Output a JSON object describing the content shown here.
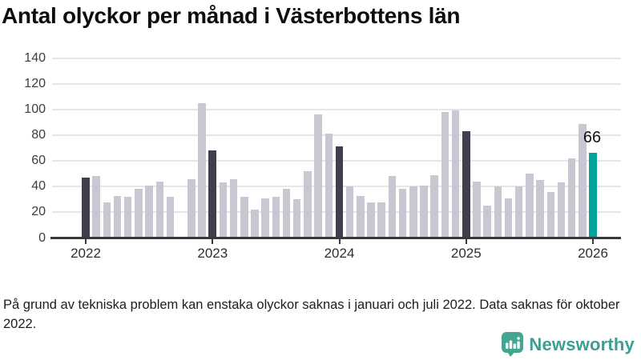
{
  "footnote": "På grund av tekniska problem kan enstaka olyckor saknas i januari och juli 2022. Data saknas för oktober 2022.",
  "brand": {
    "name": "Newsworthy",
    "icon": "newsworthy-speech-bubble-bar-chart-icon",
    "color": "#3d9e93"
  },
  "colors": {
    "bar_default": "#c9c7d2",
    "bar_january": "#413e4e",
    "bar_highlight": "#00a69b",
    "axis": "#38383d",
    "gridline": "#e7e5e9"
  },
  "chart_data": {
    "type": "bar",
    "title": "Antal olyckor per månad i Västerbottens län",
    "ylabel": "",
    "xlabel": "",
    "ylim": [
      0,
      140
    ],
    "yticks": [
      0,
      20,
      40,
      60,
      80,
      100,
      120,
      140
    ],
    "grid": "horizontal",
    "legend": "none",
    "xticks": [
      {
        "label": "2022",
        "index": 0
      },
      {
        "label": "2023",
        "index": 12
      },
      {
        "label": "2024",
        "index": 24
      },
      {
        "label": "2025",
        "index": 36
      },
      {
        "label": "2026",
        "index": 48
      }
    ],
    "annotation": {
      "text": "66",
      "index": 48
    },
    "series": [
      {
        "name": "Olyckor per månad",
        "points": [
          {
            "month": "2022-01",
            "value": 47,
            "style": "january"
          },
          {
            "month": "2022-02",
            "value": 48,
            "style": "default"
          },
          {
            "month": "2022-03",
            "value": 28,
            "style": "default"
          },
          {
            "month": "2022-04",
            "value": 33,
            "style": "default"
          },
          {
            "month": "2022-05",
            "value": 32,
            "style": "default"
          },
          {
            "month": "2022-06",
            "value": 38,
            "style": "default"
          },
          {
            "month": "2022-07",
            "value": 41,
            "style": "default"
          },
          {
            "month": "2022-08",
            "value": 44,
            "style": "default"
          },
          {
            "month": "2022-09",
            "value": 32,
            "style": "default"
          },
          {
            "month": "2022-10",
            "value": null,
            "style": "missing"
          },
          {
            "month": "2022-11",
            "value": 46,
            "style": "default"
          },
          {
            "month": "2022-12",
            "value": 105,
            "style": "default"
          },
          {
            "month": "2023-01",
            "value": 68,
            "style": "january"
          },
          {
            "month": "2023-02",
            "value": 43,
            "style": "default"
          },
          {
            "month": "2023-03",
            "value": 46,
            "style": "default"
          },
          {
            "month": "2023-04",
            "value": 32,
            "style": "default"
          },
          {
            "month": "2023-05",
            "value": 22,
            "style": "default"
          },
          {
            "month": "2023-06",
            "value": 31,
            "style": "default"
          },
          {
            "month": "2023-07",
            "value": 32,
            "style": "default"
          },
          {
            "month": "2023-08",
            "value": 38,
            "style": "default"
          },
          {
            "month": "2023-09",
            "value": 30,
            "style": "default"
          },
          {
            "month": "2023-10",
            "value": 52,
            "style": "default"
          },
          {
            "month": "2023-11",
            "value": 96,
            "style": "default"
          },
          {
            "month": "2023-12",
            "value": 81,
            "style": "default"
          },
          {
            "month": "2024-01",
            "value": 71,
            "style": "january"
          },
          {
            "month": "2024-02",
            "value": 40,
            "style": "default"
          },
          {
            "month": "2024-03",
            "value": 33,
            "style": "default"
          },
          {
            "month": "2024-04",
            "value": 28,
            "style": "default"
          },
          {
            "month": "2024-05",
            "value": 28,
            "style": "default"
          },
          {
            "month": "2024-06",
            "value": 48,
            "style": "default"
          },
          {
            "month": "2024-07",
            "value": 38,
            "style": "default"
          },
          {
            "month": "2024-08",
            "value": 40,
            "style": "default"
          },
          {
            "month": "2024-09",
            "value": 41,
            "style": "default"
          },
          {
            "month": "2024-10",
            "value": 49,
            "style": "default"
          },
          {
            "month": "2024-11",
            "value": 98,
            "style": "default"
          },
          {
            "month": "2024-12",
            "value": 99,
            "style": "default"
          },
          {
            "month": "2025-01",
            "value": 83,
            "style": "january"
          },
          {
            "month": "2025-02",
            "value": 44,
            "style": "default"
          },
          {
            "month": "2025-03",
            "value": 25,
            "style": "default"
          },
          {
            "month": "2025-04",
            "value": 40,
            "style": "default"
          },
          {
            "month": "2025-05",
            "value": 31,
            "style": "default"
          },
          {
            "month": "2025-06",
            "value": 40,
            "style": "default"
          },
          {
            "month": "2025-07",
            "value": 50,
            "style": "default"
          },
          {
            "month": "2025-08",
            "value": 45,
            "style": "default"
          },
          {
            "month": "2025-09",
            "value": 36,
            "style": "default"
          },
          {
            "month": "2025-10",
            "value": 43,
            "style": "default"
          },
          {
            "month": "2025-11",
            "value": 62,
            "style": "default"
          },
          {
            "month": "2025-12",
            "value": 89,
            "style": "default"
          },
          {
            "month": "2026-01",
            "value": 66,
            "style": "highlight"
          }
        ]
      }
    ]
  }
}
